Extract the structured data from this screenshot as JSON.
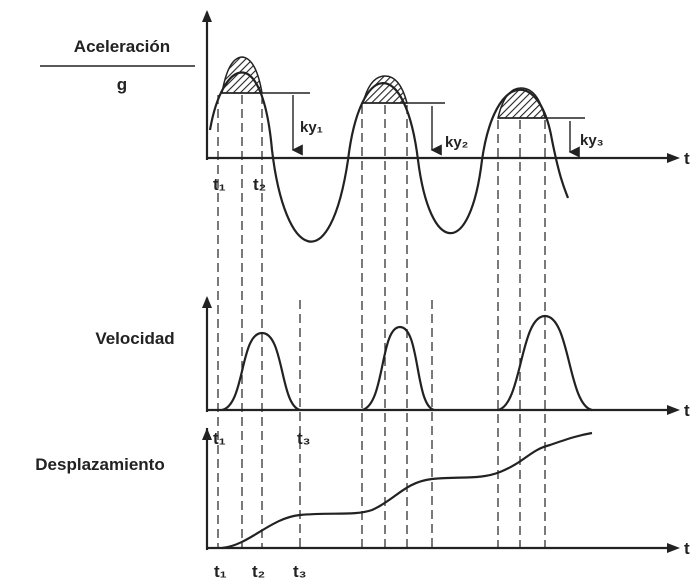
{
  "acceleration": {
    "label_top": "Aceleración",
    "label_bottom": "g",
    "axis": "t",
    "ticks": [
      "t₁",
      "t₂"
    ],
    "thresholds": [
      "ky₁",
      "ky₂",
      "ky₃"
    ]
  },
  "velocity": {
    "label": "Velocidad",
    "axis": "t"
  },
  "displacement": {
    "label": "Desplazamiento",
    "axis": "t",
    "ticks_top": [
      "t₁",
      "t₃"
    ],
    "ticks_bottom": [
      "t₁",
      "t₂",
      "t₃"
    ]
  }
}
